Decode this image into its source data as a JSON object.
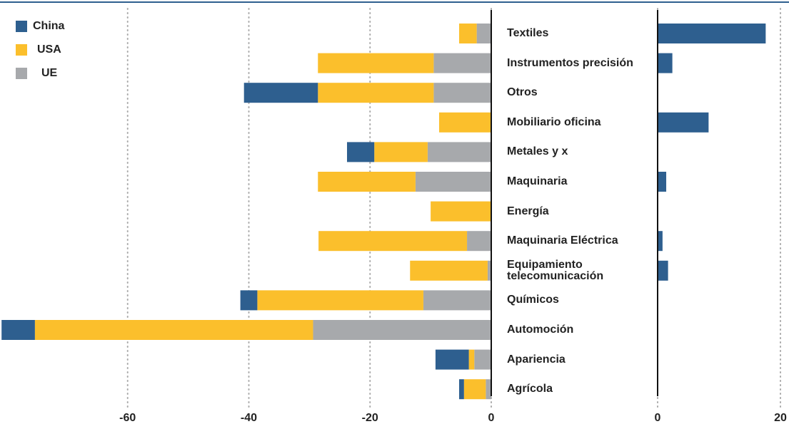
{
  "chart_data": [
    {
      "type": "bar",
      "categories": [
        "Textiles",
        "Instrumentos precisión",
        "Otros",
        "Mobiliario oficina",
        "Metales y x",
        "Maquinaria",
        "Energía",
        "Maquinaria Eléctrica",
        "Equipamiento telecomunicación",
        "Químicos",
        "Automoción",
        "Apariencia",
        "Agrícola"
      ],
      "series": [
        {
          "name": "China",
          "color": "#2e5f8f",
          "values": [
            0,
            0,
            -12.2,
            0,
            -4.5,
            0,
            0,
            0,
            0,
            -2.8,
            -5.5,
            -5.5,
            -0.8
          ]
        },
        {
          "name": "USA",
          "color": "#fbbf2c",
          "values": [
            -2.9,
            -19.1,
            -19.1,
            -8.6,
            -8.8,
            -16.1,
            -10.0,
            -24.5,
            -12.8,
            -27.4,
            -45.9,
            -0.9,
            -3.6
          ]
        },
        {
          "name": "UE",
          "color": "#a7a9ac",
          "values": [
            -2.4,
            -9.5,
            -9.5,
            0,
            -10.5,
            -12.5,
            0,
            -4.0,
            -0.6,
            -11.2,
            -29.4,
            -2.8,
            -0.9
          ]
        }
      ],
      "xlim": [
        -81,
        0
      ],
      "xticks": [
        -60,
        -40,
        -20,
        0
      ],
      "grid": true
    },
    {
      "type": "bar",
      "color": "#2e5f8f",
      "values": [
        17.6,
        2.4,
        0,
        8.3,
        0,
        1.4,
        0,
        0.8,
        1.7,
        0,
        0,
        0,
        0
      ],
      "xlim": [
        0,
        21
      ],
      "xticks": [
        0,
        20
      ],
      "grid": true
    }
  ]
}
